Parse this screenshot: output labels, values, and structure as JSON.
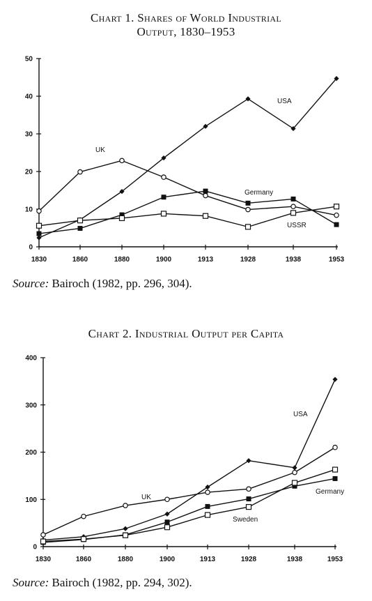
{
  "charts": [
    {
      "title_line1": "Chart 1. Shares of World Industrial",
      "title_line2": "Output, 1830–1953",
      "source_label": "Source:",
      "source_text": "Bairoch (1982, pp. 296, 304)."
    },
    {
      "title_line1": "Chart 2. Industrial Output per Capita",
      "title_line2": "",
      "source_label": "Source:",
      "source_text": "Bairoch (1982, pp. 294, 302)."
    }
  ],
  "chart_data": [
    {
      "type": "line",
      "title": "Chart 1. Shares of World Industrial Output, 1830–1953",
      "categories": [
        "1830",
        "1860",
        "1880",
        "1900",
        "1913",
        "1928",
        "1938",
        "1953"
      ],
      "ylim": [
        0,
        50
      ],
      "yticks": [
        0,
        10,
        20,
        30,
        40,
        50
      ],
      "xlabel": "",
      "ylabel": "",
      "grid": false,
      "legend": "inline labels",
      "series": [
        {
          "name": "USA",
          "marker": "filled-diamond",
          "values": [
            2.4,
            7.2,
            14.7,
            23.6,
            32.0,
            39.3,
            31.4,
            44.7
          ]
        },
        {
          "name": "UK",
          "marker": "open-circle",
          "values": [
            9.5,
            19.9,
            22.9,
            18.5,
            13.6,
            9.9,
            10.7,
            8.4
          ]
        },
        {
          "name": "Germany",
          "marker": "filled-square",
          "values": [
            3.5,
            4.9,
            8.5,
            13.2,
            14.8,
            11.6,
            12.7,
            5.9
          ]
        },
        {
          "name": "USSR",
          "marker": "open-square",
          "values": [
            5.6,
            7.0,
            7.6,
            8.8,
            8.2,
            5.3,
            9.0,
            10.7
          ]
        }
      ]
    },
    {
      "type": "line",
      "title": "Chart 2. Industrial Output per Capita",
      "categories": [
        "1830",
        "1860",
        "1880",
        "1900",
        "1913",
        "1928",
        "1938",
        "1953"
      ],
      "ylim": [
        0,
        400
      ],
      "yticks": [
        0,
        100,
        200,
        300,
        400
      ],
      "xlabel": "",
      "ylabel": "",
      "grid": false,
      "legend": "inline labels",
      "series": [
        {
          "name": "USA",
          "marker": "filled-diamond",
          "values": [
            14,
            21,
            38,
            69,
            126,
            182,
            167,
            354
          ]
        },
        {
          "name": "UK",
          "marker": "open-circle",
          "values": [
            25,
            64,
            87,
            100,
            115,
            122,
            157,
            210
          ]
        },
        {
          "name": "Germany",
          "marker": "filled-square",
          "values": [
            9,
            15,
            25,
            52,
            85,
            101,
            128,
            144
          ]
        },
        {
          "name": "Sweden",
          "marker": "open-square",
          "values": [
            11,
            16,
            24,
            41,
            67,
            84,
            135,
            163
          ]
        }
      ]
    }
  ]
}
